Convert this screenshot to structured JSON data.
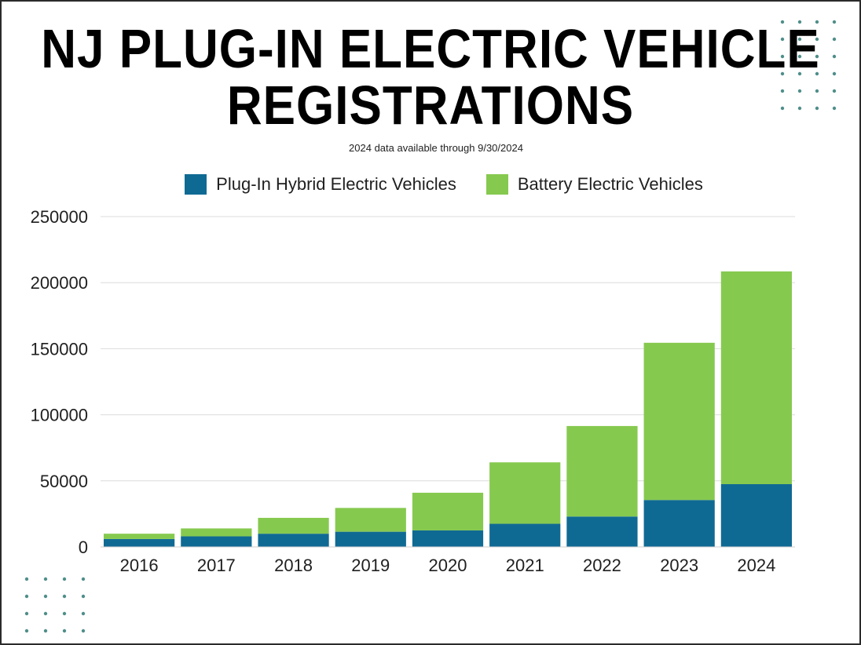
{
  "colors": {
    "phev": "#0f6a93",
    "bev": "#86c94f",
    "grid": "#dcdcdc",
    "text": "#1f1f1f"
  },
  "chart_data": {
    "type": "bar",
    "stacked": true,
    "title_lines": [
      "NJ PLUG-IN ELECTRIC VEHICLE",
      "REGISTRATIONS"
    ],
    "subtitle": "2024 data available through 9/30/2024",
    "categories": [
      "2016",
      "2017",
      "2018",
      "2019",
      "2020",
      "2021",
      "2022",
      "2023",
      "2024"
    ],
    "series": [
      {
        "name": "Plug-In Hybrid Electric Vehicles",
        "color": "#0f6a93",
        "values": [
          6000,
          8000,
          10000,
          11500,
          12500,
          17500,
          23000,
          35500,
          47500
        ]
      },
      {
        "name": "Battery Electric Vehicles",
        "color": "#86c94f",
        "values": [
          4000,
          6000,
          12000,
          18000,
          28500,
          46500,
          68500,
          119000,
          161000
        ]
      }
    ],
    "yticks": [
      "0",
      "50000",
      "100000",
      "150000",
      "200000",
      "250000"
    ],
    "ylim": [
      0,
      250000
    ],
    "grid": true,
    "legend_position": "top-center"
  }
}
